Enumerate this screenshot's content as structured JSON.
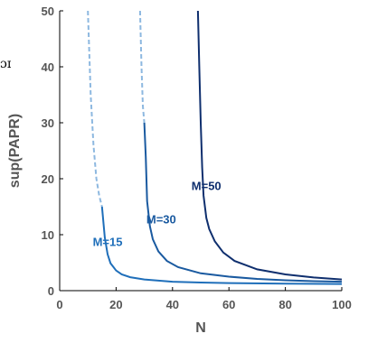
{
  "chart_data": {
    "type": "line",
    "xlabel": "N",
    "ylabel": "sup(PAPR)",
    "xlim": [
      0,
      100
    ],
    "ylim": [
      0,
      50
    ],
    "xticks": [
      "0",
      "20",
      "40",
      "60",
      "80",
      "100"
    ],
    "yticks": [
      "0",
      "10",
      "20",
      "30",
      "40",
      "50"
    ],
    "grid": false,
    "series": [
      {
        "name": "M=15",
        "color": "#1f6fba",
        "dashed_color": "#8db8e0",
        "solid_from_x": 15,
        "points": [
          [
            10,
            50
          ],
          [
            11,
            35
          ],
          [
            12,
            26
          ],
          [
            13,
            20
          ],
          [
            14,
            17
          ],
          [
            15,
            15
          ],
          [
            16,
            9.5
          ],
          [
            17,
            6.5
          ],
          [
            18,
            4.9
          ],
          [
            20,
            3.6
          ],
          [
            22,
            2.9
          ],
          [
            25,
            2.4
          ],
          [
            30,
            2.0
          ],
          [
            40,
            1.6
          ],
          [
            50,
            1.45
          ],
          [
            60,
            1.35
          ],
          [
            80,
            1.25
          ],
          [
            100,
            1.2
          ]
        ]
      },
      {
        "name": "M=30",
        "color": "#1a5aa0",
        "dashed_color": "#8db8e0",
        "solid_from_x": 30,
        "points": [
          [
            28.5,
            50
          ],
          [
            29,
            40
          ],
          [
            29.5,
            33
          ],
          [
            30,
            30
          ],
          [
            30.5,
            24
          ],
          [
            31,
            16
          ],
          [
            32,
            11.5
          ],
          [
            33,
            9.2
          ],
          [
            35,
            7.0
          ],
          [
            38,
            5.3
          ],
          [
            42,
            4.2
          ],
          [
            50,
            3.1
          ],
          [
            60,
            2.5
          ],
          [
            70,
            2.1
          ],
          [
            80,
            1.85
          ],
          [
            90,
            1.7
          ],
          [
            100,
            1.6
          ]
        ]
      },
      {
        "name": "M=50",
        "color": "#0f2f6e",
        "dashed_color": "#8db8e0",
        "solid_from_x": 49,
        "points": [
          [
            49,
            50
          ],
          [
            49.5,
            40
          ],
          [
            50,
            30
          ],
          [
            50.5,
            22
          ],
          [
            51,
            17
          ],
          [
            52,
            13
          ],
          [
            53,
            11
          ],
          [
            55,
            8.8
          ],
          [
            58,
            6.8
          ],
          [
            62,
            5.3
          ],
          [
            70,
            3.8
          ],
          [
            80,
            2.9
          ],
          [
            90,
            2.35
          ],
          [
            100,
            2.0
          ]
        ]
      }
    ],
    "annotations": [
      {
        "text": "M=15",
        "x": 17,
        "y": 8
      },
      {
        "text": "M=30",
        "x": 36,
        "y": 12
      },
      {
        "text": "M=50",
        "x": 52,
        "y": 18
      }
    ],
    "stray_text": "ɔɪ"
  }
}
